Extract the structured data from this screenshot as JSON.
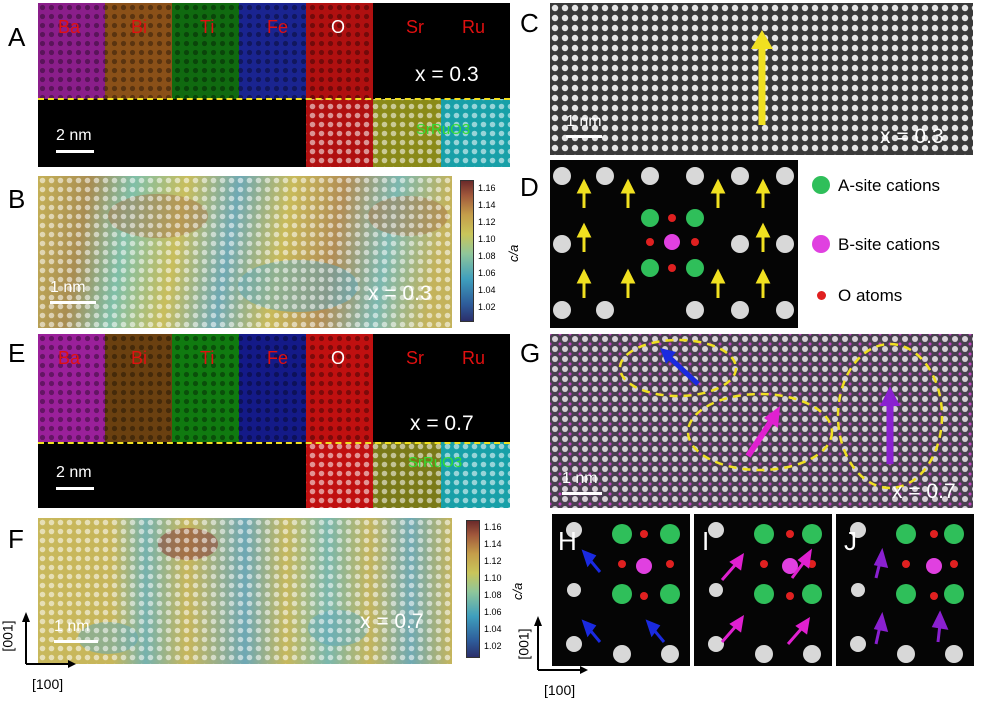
{
  "panels": {
    "A": {
      "letter": "A",
      "elements": [
        "Ba",
        "Bi",
        "Ti",
        "Fe",
        "O",
        "Sr",
        "Ru"
      ],
      "x_label": "x = 0.3",
      "substrate": "SrRuO3",
      "scale": "2 nm"
    },
    "B": {
      "letter": "B",
      "x_label": "x = 0.3",
      "scale": "1 nm",
      "colorbar_label": "c/a",
      "colorbar_ticks": [
        "1.16",
        "1.14",
        "1.12",
        "1.10",
        "1.08",
        "1.06",
        "1.04",
        "1.02"
      ]
    },
    "C": {
      "letter": "C",
      "x_label": "x = 0.3",
      "scale": "1 nm"
    },
    "D": {
      "letter": "D"
    },
    "E": {
      "letter": "E",
      "elements": [
        "Ba",
        "Bi",
        "Ti",
        "Fe",
        "O",
        "Sr",
        "Ru"
      ],
      "x_label": "x = 0.7",
      "substrate": "SrRuO3",
      "scale": "2 nm"
    },
    "F": {
      "letter": "F",
      "x_label": "x = 0.7",
      "scale": "1 nm",
      "colorbar_label": "c/a",
      "colorbar_ticks": [
        "1.16",
        "1.14",
        "1.12",
        "1.10",
        "1.08",
        "1.06",
        "1.04",
        "1.02"
      ]
    },
    "G": {
      "letter": "G",
      "x_label": "x = 0.7",
      "scale": "1 nm"
    },
    "H": {
      "letter": "H"
    },
    "I": {
      "letter": "I"
    },
    "J": {
      "letter": "J"
    }
  },
  "legend": {
    "a_site": "A-site cations",
    "b_site": "B-site cations",
    "o_atoms": "O atoms"
  },
  "axes": {
    "vertical": "[001]",
    "horizontal": "[100]"
  },
  "colors": {
    "Ba": "#c030c0",
    "Bi": "#b06a20",
    "Ti": "#1a9a1a",
    "Fe": "#2030c0",
    "O": "#e01010",
    "Sr": "#d0d020",
    "Ru": "#20c0c8",
    "a_site": "#2fbf5a",
    "b_site": "#e040e0",
    "o_atom": "#e02020",
    "label_red": "#e01010",
    "label_green": "#33dd33",
    "guide_yellow": "#f0e020"
  }
}
